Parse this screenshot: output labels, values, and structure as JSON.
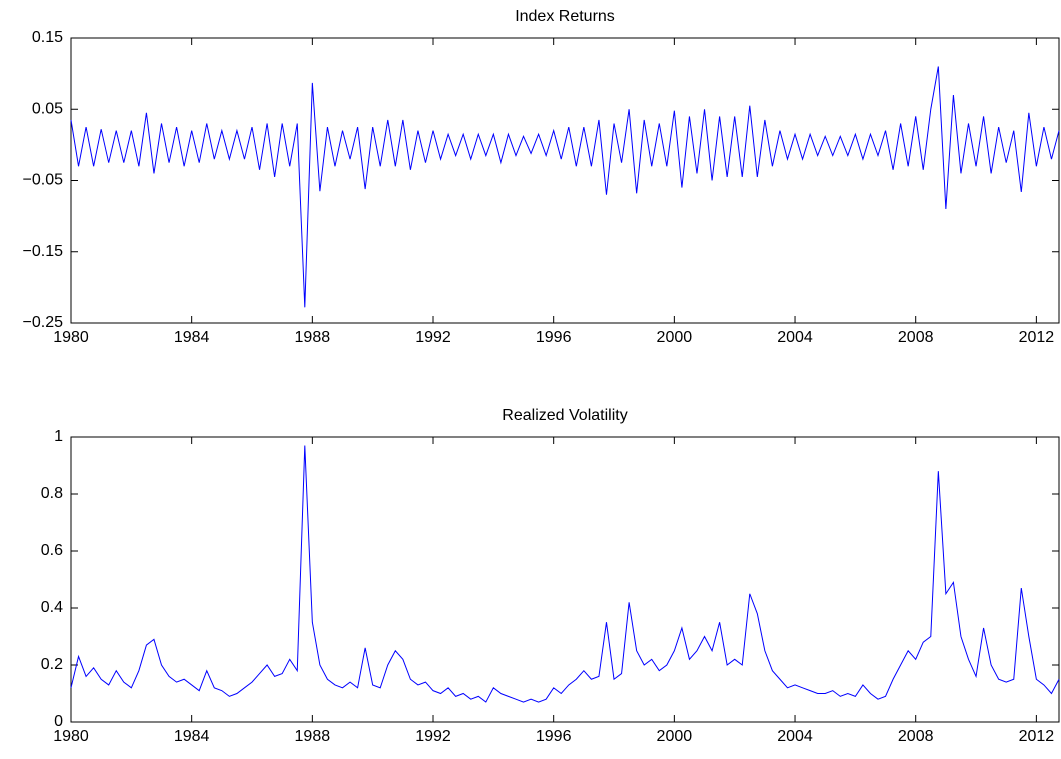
{
  "chart_data": [
    {
      "type": "line",
      "title": "Index Returns",
      "color": "#0000ff",
      "xlim": [
        1980,
        2012.75
      ],
      "xticks": [
        1980,
        1984,
        1988,
        1992,
        1996,
        2000,
        2004,
        2008,
        2012
      ],
      "ylim": [
        -0.25,
        0.15
      ],
      "yticks": [
        {
          "value": -0.25,
          "label": "−0.25"
        },
        {
          "value": -0.15,
          "label": "−0.15"
        },
        {
          "value": -0.05,
          "label": "−0.05"
        },
        0.05,
        0.15
      ],
      "x": [
        1980,
        1980.25,
        1980.5,
        1980.75,
        1981,
        1981.25,
        1981.5,
        1981.75,
        1982,
        1982.25,
        1982.5,
        1982.75,
        1983,
        1983.25,
        1983.5,
        1983.75,
        1984,
        1984.25,
        1984.5,
        1984.75,
        1985,
        1985.25,
        1985.5,
        1985.75,
        1986,
        1986.25,
        1986.5,
        1986.75,
        1987,
        1987.25,
        1987.5,
        1987.75,
        1988,
        1988.25,
        1988.5,
        1988.75,
        1989,
        1989.25,
        1989.5,
        1989.75,
        1990,
        1990.25,
        1990.5,
        1990.75,
        1991,
        1991.25,
        1991.5,
        1991.75,
        1992,
        1992.25,
        1992.5,
        1992.75,
        1993,
        1993.25,
        1993.5,
        1993.75,
        1994,
        1994.25,
        1994.5,
        1994.75,
        1995,
        1995.25,
        1995.5,
        1995.75,
        1996,
        1996.25,
        1996.5,
        1996.75,
        1997,
        1997.25,
        1997.5,
        1997.75,
        1998,
        1998.25,
        1998.5,
        1998.75,
        1999,
        1999.25,
        1999.5,
        1999.75,
        2000,
        2000.25,
        2000.5,
        2000.75,
        2001,
        2001.25,
        2001.5,
        2001.75,
        2002,
        2002.25,
        2002.5,
        2002.75,
        2003,
        2003.25,
        2003.5,
        2003.75,
        2004,
        2004.25,
        2004.5,
        2004.75,
        2005,
        2005.25,
        2005.5,
        2005.75,
        2006,
        2006.25,
        2006.5,
        2006.75,
        2007,
        2007.25,
        2007.5,
        2007.75,
        2008,
        2008.25,
        2008.5,
        2008.75,
        2009,
        2009.25,
        2009.5,
        2009.75,
        2010,
        2010.25,
        2010.5,
        2010.75,
        2011,
        2011.25,
        2011.5,
        2011.75,
        2012,
        2012.25,
        2012.5,
        2012.75
      ],
      "values": [
        0.035,
        -0.03,
        0.025,
        -0.03,
        0.022,
        -0.025,
        0.02,
        -0.025,
        0.02,
        -0.03,
        0.045,
        -0.04,
        0.03,
        -0.025,
        0.025,
        -0.03,
        0.02,
        -0.025,
        0.03,
        -0.02,
        0.02,
        -0.02,
        0.02,
        -0.02,
        0.025,
        -0.035,
        0.03,
        -0.045,
        0.03,
        -0.03,
        0.03,
        -0.228,
        0.087,
        -0.065,
        0.025,
        -0.03,
        0.02,
        -0.02,
        0.025,
        -0.062,
        0.025,
        -0.03,
        0.035,
        -0.03,
        0.035,
        -0.035,
        0.02,
        -0.025,
        0.02,
        -0.02,
        0.015,
        -0.015,
        0.015,
        -0.02,
        0.015,
        -0.015,
        0.015,
        -0.025,
        0.015,
        -0.015,
        0.012,
        -0.012,
        0.015,
        -0.015,
        0.02,
        -0.02,
        0.025,
        -0.03,
        0.025,
        -0.03,
        0.035,
        -0.07,
        0.03,
        -0.025,
        0.05,
        -0.068,
        0.035,
        -0.03,
        0.03,
        -0.03,
        0.048,
        -0.06,
        0.04,
        -0.04,
        0.05,
        -0.05,
        0.04,
        -0.045,
        0.04,
        -0.045,
        0.055,
        -0.045,
        0.035,
        -0.03,
        0.02,
        -0.02,
        0.015,
        -0.02,
        0.015,
        -0.015,
        0.012,
        -0.015,
        0.012,
        -0.015,
        0.015,
        -0.02,
        0.015,
        -0.015,
        0.02,
        -0.035,
        0.03,
        -0.03,
        0.04,
        -0.035,
        0.05,
        0.11,
        -0.09,
        0.07,
        -0.04,
        0.03,
        -0.03,
        0.04,
        -0.04,
        0.025,
        -0.025,
        0.02,
        -0.066,
        0.045,
        -0.03,
        0.025,
        -0.02,
        0.02
      ]
    },
    {
      "type": "line",
      "title": "Realized Volatility",
      "color": "#0000ff",
      "xlim": [
        1980,
        2012.75
      ],
      "xticks": [
        1980,
        1984,
        1988,
        1992,
        1996,
        2000,
        2004,
        2008,
        2012
      ],
      "ylim": [
        0,
        1
      ],
      "yticks": [
        0,
        0.2,
        0.4,
        0.6,
        0.8,
        1
      ],
      "x": [
        1980,
        1980.25,
        1980.5,
        1980.75,
        1981,
        1981.25,
        1981.5,
        1981.75,
        1982,
        1982.25,
        1982.5,
        1982.75,
        1983,
        1983.25,
        1983.5,
        1983.75,
        1984,
        1984.25,
        1984.5,
        1984.75,
        1985,
        1985.25,
        1985.5,
        1985.75,
        1986,
        1986.25,
        1986.5,
        1986.75,
        1987,
        1987.25,
        1987.5,
        1987.75,
        1988,
        1988.25,
        1988.5,
        1988.75,
        1989,
        1989.25,
        1989.5,
        1989.75,
        1990,
        1990.25,
        1990.5,
        1990.75,
        1991,
        1991.25,
        1991.5,
        1991.75,
        1992,
        1992.25,
        1992.5,
        1992.75,
        1993,
        1993.25,
        1993.5,
        1993.75,
        1994,
        1994.25,
        1994.5,
        1994.75,
        1995,
        1995.25,
        1995.5,
        1995.75,
        1996,
        1996.25,
        1996.5,
        1996.75,
        1997,
        1997.25,
        1997.5,
        1997.75,
        1998,
        1998.25,
        1998.5,
        1998.75,
        1999,
        1999.25,
        1999.5,
        1999.75,
        2000,
        2000.25,
        2000.5,
        2000.75,
        2001,
        2001.25,
        2001.5,
        2001.75,
        2002,
        2002.25,
        2002.5,
        2002.75,
        2003,
        2003.25,
        2003.5,
        2003.75,
        2004,
        2004.25,
        2004.5,
        2004.75,
        2005,
        2005.25,
        2005.5,
        2005.75,
        2006,
        2006.25,
        2006.5,
        2006.75,
        2007,
        2007.25,
        2007.5,
        2007.75,
        2008,
        2008.25,
        2008.5,
        2008.75,
        2009,
        2009.25,
        2009.5,
        2009.75,
        2010,
        2010.25,
        2010.5,
        2010.75,
        2011,
        2011.25,
        2011.5,
        2011.75,
        2012,
        2012.25,
        2012.5,
        2012.75
      ],
      "values": [
        0.12,
        0.23,
        0.16,
        0.19,
        0.15,
        0.13,
        0.18,
        0.14,
        0.12,
        0.18,
        0.27,
        0.29,
        0.2,
        0.16,
        0.14,
        0.15,
        0.13,
        0.11,
        0.18,
        0.12,
        0.11,
        0.09,
        0.1,
        0.12,
        0.14,
        0.17,
        0.2,
        0.16,
        0.17,
        0.22,
        0.18,
        0.97,
        0.35,
        0.2,
        0.15,
        0.13,
        0.12,
        0.14,
        0.12,
        0.26,
        0.13,
        0.12,
        0.2,
        0.25,
        0.22,
        0.15,
        0.13,
        0.14,
        0.11,
        0.1,
        0.12,
        0.09,
        0.1,
        0.08,
        0.09,
        0.07,
        0.12,
        0.1,
        0.09,
        0.08,
        0.07,
        0.08,
        0.07,
        0.08,
        0.12,
        0.1,
        0.13,
        0.15,
        0.18,
        0.15,
        0.16,
        0.35,
        0.15,
        0.17,
        0.42,
        0.25,
        0.2,
        0.22,
        0.18,
        0.2,
        0.25,
        0.33,
        0.22,
        0.25,
        0.3,
        0.25,
        0.35,
        0.2,
        0.22,
        0.2,
        0.45,
        0.38,
        0.25,
        0.18,
        0.15,
        0.12,
        0.13,
        0.12,
        0.11,
        0.1,
        0.1,
        0.11,
        0.09,
        0.1,
        0.09,
        0.13,
        0.1,
        0.08,
        0.09,
        0.15,
        0.2,
        0.25,
        0.22,
        0.28,
        0.3,
        0.88,
        0.45,
        0.49,
        0.3,
        0.22,
        0.16,
        0.33,
        0.2,
        0.15,
        0.14,
        0.15,
        0.47,
        0.3,
        0.15,
        0.13,
        0.1,
        0.15
      ]
    }
  ]
}
